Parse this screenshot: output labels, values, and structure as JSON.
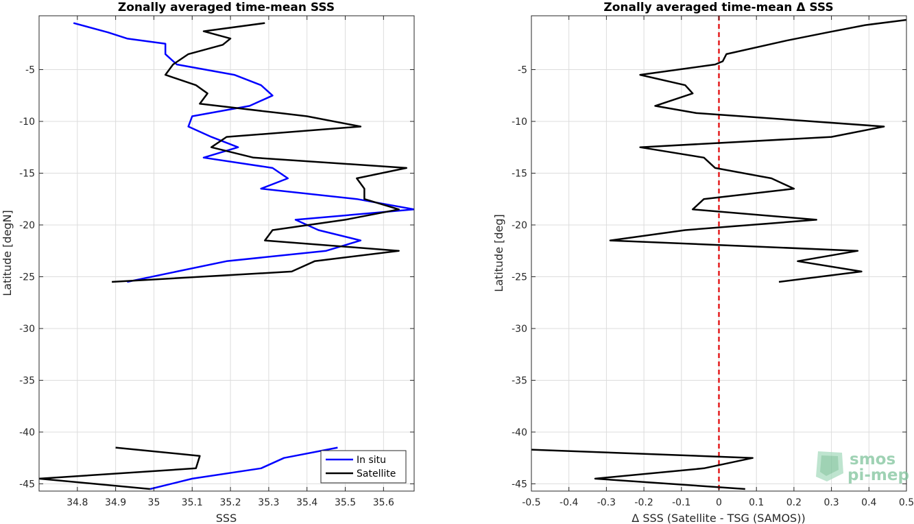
{
  "chart_data": [
    {
      "type": "line",
      "title": "Zonally averaged time-mean SSS",
      "xlabel": "SSS",
      "ylabel": "Latitude [degN]",
      "xlim": [
        34.7,
        35.68
      ],
      "ylim": [
        -45.7,
        0.2
      ],
      "xticks": [
        "34.8",
        "34.9",
        "35",
        "35.1",
        "35.2",
        "35.3",
        "35.4",
        "35.5",
        "35.6"
      ],
      "yticks": [
        "-5",
        "-10",
        "-15",
        "-20",
        "-25",
        "-30",
        "-35",
        "-40",
        "-45"
      ],
      "grid": true,
      "legend": {
        "placement": "bottom-right",
        "entries": [
          "In situ",
          "Satellite"
        ]
      },
      "series": [
        {
          "name": "In situ",
          "color": "#0000ff",
          "segments": [
            [
              [
                34.79,
                -0.5
              ],
              [
                34.88,
                -1.4
              ],
              [
                34.93,
                -2.0
              ],
              [
                35.03,
                -2.5
              ],
              [
                35.03,
                -3.5
              ],
              [
                35.06,
                -4.5
              ],
              [
                35.21,
                -5.5
              ],
              [
                35.28,
                -6.5
              ],
              [
                35.31,
                -7.5
              ],
              [
                35.25,
                -8.5
              ],
              [
                35.1,
                -9.5
              ],
              [
                35.09,
                -10.5
              ],
              [
                35.15,
                -11.5
              ],
              [
                35.22,
                -12.5
              ],
              [
                35.13,
                -13.5
              ],
              [
                35.31,
                -14.5
              ],
              [
                35.35,
                -15.5
              ],
              [
                35.28,
                -16.5
              ],
              [
                35.53,
                -17.5
              ],
              [
                35.68,
                -18.5
              ],
              [
                35.37,
                -19.5
              ],
              [
                35.43,
                -20.5
              ],
              [
                35.54,
                -21.5
              ],
              [
                35.45,
                -22.5
              ],
              [
                35.19,
                -23.5
              ],
              [
                35.06,
                -24.5
              ],
              [
                34.93,
                -25.5
              ]
            ],
            [
              [
                35.48,
                -41.5
              ],
              [
                35.34,
                -42.5
              ],
              [
                35.28,
                -43.5
              ],
              [
                35.1,
                -44.5
              ],
              [
                34.99,
                -45.5
              ]
            ]
          ]
        },
        {
          "name": "Satellite",
          "color": "#000000",
          "segments": [
            [
              [
                35.29,
                -0.5
              ],
              [
                35.13,
                -1.3
              ],
              [
                35.2,
                -2.0
              ],
              [
                35.18,
                -2.6
              ],
              [
                35.09,
                -3.5
              ],
              [
                35.05,
                -4.5
              ],
              [
                35.03,
                -5.5
              ],
              [
                35.11,
                -6.5
              ],
              [
                35.14,
                -7.3
              ],
              [
                35.12,
                -8.3
              ],
              [
                35.33,
                -9.2
              ],
              [
                35.4,
                -9.5
              ],
              [
                35.54,
                -10.5
              ],
              [
                35.19,
                -11.5
              ],
              [
                35.15,
                -12.5
              ],
              [
                35.26,
                -13.5
              ],
              [
                35.66,
                -14.5
              ],
              [
                35.53,
                -15.5
              ],
              [
                35.55,
                -16.5
              ],
              [
                35.55,
                -17.5
              ],
              [
                35.64,
                -18.5
              ],
              [
                35.5,
                -19.5
              ],
              [
                35.31,
                -20.5
              ],
              [
                35.29,
                -21.5
              ],
              [
                35.64,
                -22.5
              ],
              [
                35.42,
                -23.5
              ],
              [
                35.36,
                -24.5
              ],
              [
                34.89,
                -25.5
              ]
            ],
            [
              [
                34.9,
                -41.5
              ],
              [
                35.12,
                -42.3
              ],
              [
                35.11,
                -43.5
              ],
              [
                34.7,
                -44.5
              ],
              [
                34.99,
                -45.5
              ]
            ]
          ]
        }
      ]
    },
    {
      "type": "line",
      "title": "Zonally averaged time-mean Δ SSS",
      "xlabel": "Δ SSS (Satellite - TSG (SAMOS))",
      "ylabel": "Latitude [deg]",
      "xlim": [
        -0.5,
        0.5
      ],
      "ylim": [
        -45.7,
        0.2
      ],
      "xticks": [
        "-0.5",
        "-0.4",
        "-0.3",
        "-0.2",
        "-0.1",
        "0",
        "0.1",
        "0.2",
        "0.3",
        "0.4",
        "0.5"
      ],
      "yticks": [
        "-5",
        "-10",
        "-15",
        "-20",
        "-25",
        "-30",
        "-35",
        "-40",
        "-45"
      ],
      "grid": true,
      "reference_line": {
        "x": 0,
        "color": "#e41a1c",
        "style": "dashed"
      },
      "series": [
        {
          "name": "",
          "color": "#000000",
          "segments": [
            [
              [
                0.5,
                -0.2
              ],
              [
                0.39,
                -0.7
              ],
              [
                0.29,
                -1.4
              ],
              [
                0.18,
                -2.2
              ],
              [
                0.02,
                -3.5
              ],
              [
                0.01,
                -4.2
              ],
              [
                -0.01,
                -4.5
              ],
              [
                -0.21,
                -5.5
              ],
              [
                -0.09,
                -6.5
              ],
              [
                -0.07,
                -7.3
              ],
              [
                -0.17,
                -8.5
              ],
              [
                -0.06,
                -9.2
              ],
              [
                0.06,
                -9.5
              ],
              [
                0.44,
                -10.5
              ],
              [
                0.3,
                -11.5
              ],
              [
                -0.21,
                -12.5
              ],
              [
                -0.04,
                -13.5
              ],
              [
                -0.01,
                -14.5
              ],
              [
                0.14,
                -15.5
              ],
              [
                0.2,
                -16.5
              ],
              [
                -0.04,
                -17.5
              ],
              [
                -0.07,
                -18.5
              ],
              [
                0.26,
                -19.5
              ],
              [
                -0.09,
                -20.5
              ],
              [
                -0.29,
                -21.5
              ],
              [
                0.37,
                -22.5
              ],
              [
                0.21,
                -23.5
              ],
              [
                0.38,
                -24.5
              ],
              [
                0.16,
                -25.5
              ]
            ],
            [
              [
                -0.5,
                -41.7
              ],
              [
                0.09,
                -42.5
              ],
              [
                -0.04,
                -43.5
              ],
              [
                -0.33,
                -44.5
              ],
              [
                0.07,
                -45.5
              ]
            ]
          ]
        }
      ]
    }
  ],
  "logo": {
    "line1": "smos",
    "line2": "pi-mep"
  }
}
